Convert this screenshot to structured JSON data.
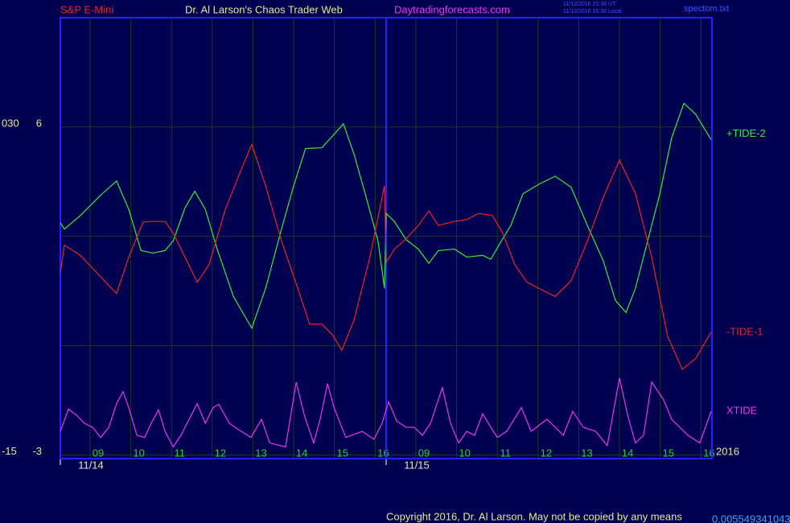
{
  "header": {
    "instrument": "S&P E-Mini",
    "title": "Dr. Al Larson's Chaos Trader Web",
    "website": "Daytradingforecasts.com",
    "timestamp_ut": "11/12/2016 21:38 UT",
    "timestamp_local": "11/12/2016 16:38 Local",
    "file": "spectom.txt"
  },
  "chart_data": {
    "type": "line",
    "xlim": [
      0,
      16
    ],
    "ylim": [
      -3.1,
      9
    ],
    "yticks": [
      -3,
      6
    ],
    "minor_gridlines": [
      0,
      3
    ],
    "secondary_axis_labels": [
      "-15",
      "030"
    ],
    "xticks": [
      {
        "value": 0.73,
        "label": "09"
      },
      {
        "value": 1.73,
        "label": "10"
      },
      {
        "value": 2.73,
        "label": "11"
      },
      {
        "value": 3.73,
        "label": "12"
      },
      {
        "value": 4.73,
        "label": "13"
      },
      {
        "value": 5.73,
        "label": "14"
      },
      {
        "value": 6.73,
        "label": "15"
      },
      {
        "value": 7.73,
        "label": "16"
      },
      {
        "value": 8.73,
        "label": "09"
      },
      {
        "value": 9.73,
        "label": "10"
      },
      {
        "value": 10.73,
        "label": "11"
      },
      {
        "value": 11.73,
        "label": "12"
      },
      {
        "value": 12.73,
        "label": "13"
      },
      {
        "value": 13.73,
        "label": "14"
      },
      {
        "value": 14.73,
        "label": "15"
      },
      {
        "value": 15.73,
        "label": "16"
      }
    ],
    "date_labels": [
      {
        "value": 0,
        "label": "11/14"
      },
      {
        "value": 8,
        "label": "11/15"
      }
    ],
    "grid": true,
    "series": [
      {
        "name": "+TIDE-2",
        "color": "#33ee33",
        "x": [
          0,
          0.1,
          0.49,
          0.99,
          1.38,
          1.68,
          1.98,
          2.27,
          2.57,
          2.77,
          3.06,
          3.3,
          3.56,
          3.85,
          4.25,
          4.7,
          5.04,
          5.43,
          5.73,
          6.02,
          6.42,
          6.81,
          6.95,
          7.21,
          7.51,
          7.8,
          7.96,
          8.0,
          8.2,
          8.49,
          8.79,
          9.05,
          9.28,
          9.68,
          9.98,
          10.37,
          10.57,
          10.77,
          11.06,
          11.36,
          11.75,
          12.15,
          12.54,
          12.94,
          13.33,
          13.63,
          13.89,
          14.12,
          14.42,
          14.72,
          15.01,
          15.31,
          15.6,
          15.98
        ],
        "values": [
          3.37,
          3.2,
          3.57,
          4.13,
          4.52,
          3.74,
          2.61,
          2.54,
          2.61,
          2.87,
          3.78,
          4.24,
          3.74,
          2.65,
          1.35,
          0.48,
          1.57,
          3.2,
          4.39,
          5.41,
          5.43,
          5.91,
          6.09,
          5.26,
          4.07,
          2.87,
          1.57,
          3.63,
          3.41,
          2.91,
          2.65,
          2.26,
          2.61,
          2.65,
          2.43,
          2.48,
          2.37,
          2.76,
          3.3,
          4.17,
          4.43,
          4.65,
          4.35,
          3.3,
          2.33,
          1.24,
          0.91,
          1.57,
          2.87,
          4.17,
          5.7,
          6.65,
          6.35,
          5.65
        ]
      },
      {
        "name": "-TIDE-1",
        "color": "#ee2222",
        "x": [
          0,
          0.1,
          0.49,
          0.99,
          1.38,
          1.68,
          2.03,
          2.27,
          2.57,
          2.77,
          3.06,
          3.36,
          3.65,
          4.05,
          4.44,
          4.7,
          5.04,
          5.43,
          5.83,
          6.12,
          6.42,
          6.68,
          6.91,
          7.21,
          7.6,
          7.96,
          8.0,
          8.2,
          8.49,
          8.79,
          9.05,
          9.28,
          9.68,
          9.98,
          10.27,
          10.61,
          10.86,
          11.16,
          11.46,
          11.75,
          12.15,
          12.54,
          12.94,
          13.33,
          13.73,
          14.12,
          14.52,
          14.91,
          15.27,
          15.6,
          15.98
        ],
        "values": [
          2.0,
          2.76,
          2.48,
          1.89,
          1.43,
          2.43,
          3.39,
          3.41,
          3.41,
          3.09,
          2.43,
          1.74,
          2.22,
          3.74,
          4.83,
          5.52,
          4.39,
          2.87,
          1.57,
          0.59,
          0.59,
          0.3,
          -0.13,
          0.7,
          2.43,
          4.39,
          2.28,
          2.65,
          2.93,
          3.3,
          3.7,
          3.3,
          3.41,
          3.46,
          3.63,
          3.57,
          3.09,
          2.22,
          1.74,
          1.57,
          1.35,
          1.78,
          2.87,
          4.07,
          5.09,
          4.17,
          2.43,
          0.26,
          -0.65,
          -0.35,
          0.37
        ]
      },
      {
        "name": "XTIDE",
        "color": "#ee33ee",
        "x": [
          0,
          0.2,
          0.4,
          0.59,
          0.79,
          0.99,
          1.19,
          1.38,
          1.54,
          1.68,
          1.88,
          2.07,
          2.23,
          2.41,
          2.57,
          2.77,
          2.96,
          3.36,
          3.56,
          3.75,
          3.89,
          4.15,
          4.44,
          4.68,
          4.94,
          5.14,
          5.53,
          5.79,
          5.99,
          6.22,
          6.38,
          6.56,
          6.72,
          7.01,
          7.41,
          7.7,
          7.9,
          8.06,
          8.26,
          8.49,
          8.69,
          8.89,
          9.09,
          9.38,
          9.58,
          9.78,
          9.98,
          10.17,
          10.37,
          10.57,
          10.73,
          10.96,
          11.32,
          11.56,
          11.95,
          12.35,
          12.58,
          12.84,
          13.14,
          13.43,
          13.73,
          13.93,
          14.12,
          14.32,
          14.52,
          14.81,
          15.01,
          15.21,
          15.41,
          15.7,
          15.98
        ],
        "values": [
          -2.35,
          -1.74,
          -1.91,
          -2.13,
          -2.24,
          -2.52,
          -2.24,
          -1.59,
          -1.26,
          -1.7,
          -2.46,
          -2.52,
          -2.13,
          -1.76,
          -2.35,
          -2.78,
          -2.46,
          -1.59,
          -2.13,
          -1.7,
          -1.61,
          -2.13,
          -2.35,
          -2.52,
          -2.02,
          -2.67,
          -2.78,
          -1.0,
          -1.91,
          -2.67,
          -2.02,
          -1.04,
          -1.7,
          -2.52,
          -2.35,
          -2.57,
          -2.13,
          -1.54,
          -2.07,
          -2.24,
          -2.24,
          -2.46,
          -2.13,
          -1.15,
          -2.13,
          -2.67,
          -2.35,
          -2.46,
          -1.87,
          -2.24,
          -2.52,
          -2.35,
          -1.7,
          -2.35,
          -2.02,
          -2.46,
          -1.8,
          -2.24,
          -2.35,
          -2.74,
          -0.89,
          -1.91,
          -2.67,
          -2.46,
          -1.0,
          -1.48,
          -2.02,
          -2.24,
          -2.46,
          -2.67,
          -1.8
        ]
      }
    ],
    "year_label": "2016"
  },
  "footer": {
    "copyright": "Copyright 2016, Dr. Al Larson. May not be copied by any means",
    "number": "0.005549341043"
  }
}
